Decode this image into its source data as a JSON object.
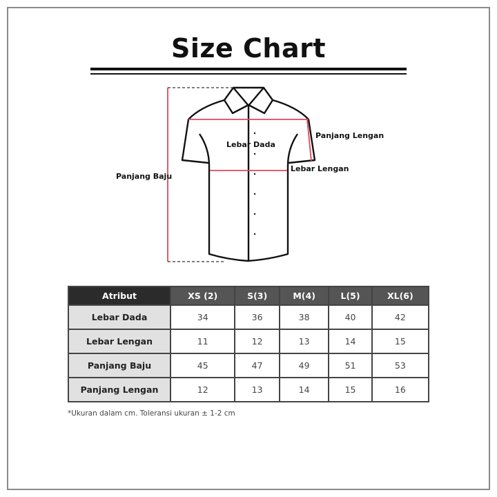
{
  "title": "Size Chart",
  "diagram": {
    "labels": {
      "lebar_dada": "Lebar Dada",
      "panjang_lengan": "Panjang Lengan",
      "lebar_lengan": "Lebar Lengan",
      "panjang_baju": "Panjang Baju"
    },
    "measure_color": "#e0455f"
  },
  "table": {
    "headers": [
      "Atribut",
      "XS (2)",
      "S(3)",
      "M(4)",
      "L(5)",
      "XL(6)"
    ],
    "rows": [
      {
        "attr": "Lebar Dada",
        "values": [
          "34",
          "36",
          "38",
          "40",
          "42"
        ]
      },
      {
        "attr": "Lebar Lengan",
        "values": [
          "11",
          "12",
          "13",
          "14",
          "15"
        ]
      },
      {
        "attr": "Panjang Baju",
        "values": [
          "45",
          "47",
          "49",
          "51",
          "53"
        ]
      },
      {
        "attr": "Panjang Lengan",
        "values": [
          "12",
          "13",
          "14",
          "15",
          "16"
        ]
      }
    ]
  },
  "note": "*Ukuran dalam cm. Toleransi ukuran ± 1-2 cm"
}
